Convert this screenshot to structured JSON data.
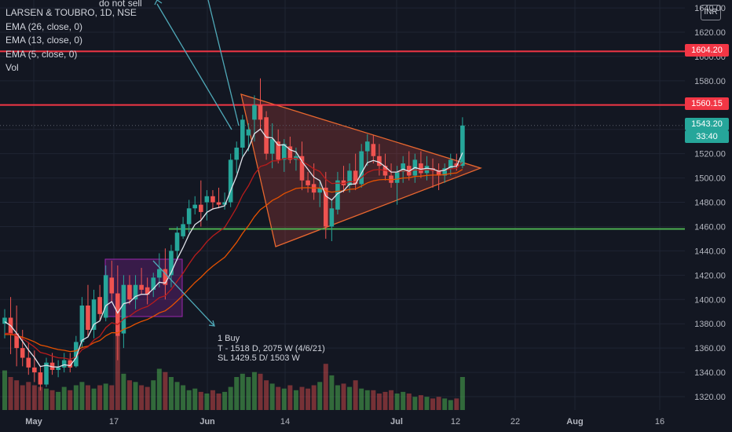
{
  "legend": {
    "symbol": "LARSEN & TOUBRO, 1D, NSE",
    "ema26": "EMA (26, close, 0)",
    "ema13": "EMA (13, close, 0)",
    "ema5": "EMA (5, close, 0)",
    "vol": "Vol"
  },
  "currency": "INR",
  "annotations": {
    "top_note": "do not sell",
    "buy_line1": "1 Buy",
    "buy_line2": "T - 1518 D, 2075 W (4/6/21)",
    "buy_line3": "SL 1429.5 D/ 1503 W"
  },
  "price_labels": {
    "line_top": "1604.20",
    "line_mid": "1560.15",
    "last_price": "1543.20",
    "countdown": "33:40"
  },
  "colors": {
    "background": "#131722",
    "up": "#26a69a",
    "down": "#ef5350",
    "red_line": "#f23645",
    "green_line": "#4caf50",
    "ema5": "#e0e3eb",
    "ema13": "#b71c1c",
    "ema26": "#e65100",
    "triangle_fill": "rgba(242,80,70,0.22)",
    "triangle_stroke": "#e8672f",
    "rect_fill": "rgba(156,39,176,0.28)",
    "rect_stroke": "#9c27b0",
    "arrow": "#4fa9b8"
  },
  "chart_data": {
    "type": "candlestick",
    "title": "LARSEN & TOUBRO, 1D, NSE",
    "ylim": [
      1310,
      1650
    ],
    "y_ticks": [
      1320,
      1340,
      1360,
      1380,
      1400,
      1420,
      1440,
      1460,
      1480,
      1500,
      1520,
      1540,
      1560,
      1580,
      1600,
      1620,
      1640
    ],
    "x_ticks": [
      "May",
      "17",
      "Jun",
      "14",
      "Jul",
      "12",
      "22",
      "Aug",
      "16"
    ],
    "horizontal_lines": [
      1604.2,
      1560.15,
      1458
    ],
    "candles": [
      [
        1380,
        1392,
        1368,
        1385,
        48
      ],
      [
        1385,
        1402,
        1355,
        1372,
        40
      ],
      [
        1372,
        1395,
        1345,
        1360,
        36
      ],
      [
        1360,
        1375,
        1345,
        1352,
        30
      ],
      [
        1352,
        1365,
        1338,
        1344,
        34
      ],
      [
        1344,
        1358,
        1332,
        1340,
        30
      ],
      [
        1340,
        1345,
        1325,
        1330,
        28
      ],
      [
        1330,
        1352,
        1328,
        1348,
        26
      ],
      [
        1348,
        1356,
        1338,
        1342,
        24
      ],
      [
        1342,
        1350,
        1336,
        1344,
        22
      ],
      [
        1344,
        1356,
        1340,
        1350,
        28
      ],
      [
        1350,
        1356,
        1340,
        1344,
        24
      ],
      [
        1345,
        1370,
        1344,
        1365,
        30
      ],
      [
        1365,
        1402,
        1360,
        1395,
        34
      ],
      [
        1395,
        1412,
        1370,
        1375,
        30
      ],
      [
        1375,
        1408,
        1368,
        1400,
        26
      ],
      [
        1402,
        1412,
        1382,
        1388,
        30
      ],
      [
        1385,
        1428,
        1382,
        1420,
        32
      ],
      [
        1418,
        1432,
        1398,
        1405,
        30
      ],
      [
        1405,
        1428,
        1350,
        1370,
        90
      ],
      [
        1372,
        1420,
        1360,
        1412,
        44
      ],
      [
        1412,
        1420,
        1396,
        1400,
        36
      ],
      [
        1400,
        1420,
        1392,
        1412,
        34
      ],
      [
        1412,
        1426,
        1404,
        1408,
        30
      ],
      [
        1410,
        1418,
        1396,
        1404,
        28
      ],
      [
        1408,
        1422,
        1402,
        1418,
        36
      ],
      [
        1418,
        1438,
        1410,
        1425,
        50
      ],
      [
        1425,
        1442,
        1400,
        1412,
        46
      ],
      [
        1420,
        1445,
        1410,
        1440,
        40
      ],
      [
        1440,
        1460,
        1432,
        1455,
        34
      ],
      [
        1452,
        1468,
        1450,
        1462,
        30
      ],
      [
        1462,
        1482,
        1455,
        1475,
        24
      ],
      [
        1475,
        1485,
        1470,
        1478,
        26
      ],
      [
        1478,
        1498,
        1460,
        1472,
        22
      ],
      [
        1480,
        1490,
        1465,
        1485,
        20
      ],
      [
        1485,
        1490,
        1474,
        1480,
        24
      ],
      [
        1480,
        1492,
        1475,
        1478,
        20
      ],
      [
        1478,
        1488,
        1474,
        1480,
        22
      ],
      [
        1480,
        1520,
        1476,
        1515,
        28
      ],
      [
        1515,
        1530,
        1504,
        1525,
        40
      ],
      [
        1525,
        1552,
        1518,
        1548,
        44
      ],
      [
        1535,
        1545,
        1522,
        1540,
        40
      ],
      [
        1548,
        1568,
        1530,
        1560,
        46
      ],
      [
        1560,
        1582,
        1540,
        1548,
        44
      ],
      [
        1550,
        1555,
        1515,
        1520,
        36
      ],
      [
        1520,
        1545,
        1508,
        1532,
        32
      ],
      [
        1530,
        1540,
        1512,
        1515,
        28
      ],
      [
        1515,
        1532,
        1505,
        1528,
        26
      ],
      [
        1526,
        1534,
        1512,
        1515,
        30
      ],
      [
        1515,
        1525,
        1506,
        1518,
        24
      ],
      [
        1518,
        1530,
        1490,
        1498,
        28
      ],
      [
        1498,
        1505,
        1488,
        1494,
        26
      ],
      [
        1495,
        1512,
        1482,
        1488,
        30
      ],
      [
        1488,
        1498,
        1476,
        1492,
        34
      ],
      [
        1492,
        1505,
        1450,
        1460,
        56
      ],
      [
        1460,
        1482,
        1448,
        1475,
        42
      ],
      [
        1474,
        1505,
        1470,
        1498,
        30
      ],
      [
        1498,
        1510,
        1488,
        1494,
        32
      ],
      [
        1494,
        1512,
        1488,
        1506,
        28
      ],
      [
        1506,
        1520,
        1490,
        1495,
        36
      ],
      [
        1495,
        1528,
        1492,
        1522,
        26
      ],
      [
        1522,
        1536,
        1510,
        1530,
        24
      ],
      [
        1528,
        1535,
        1512,
        1518,
        24
      ],
      [
        1518,
        1528,
        1502,
        1510,
        20
      ],
      [
        1510,
        1520,
        1498,
        1502,
        22
      ],
      [
        1502,
        1512,
        1492,
        1496,
        24
      ],
      [
        1496,
        1510,
        1478,
        1505,
        20
      ],
      [
        1505,
        1518,
        1496,
        1512,
        22
      ],
      [
        1510,
        1522,
        1498,
        1502,
        20
      ],
      [
        1502,
        1520,
        1496,
        1515,
        16
      ],
      [
        1512,
        1522,
        1500,
        1504,
        18
      ],
      [
        1504,
        1518,
        1498,
        1510,
        16
      ],
      [
        1508,
        1516,
        1492,
        1506,
        14
      ],
      [
        1506,
        1512,
        1490,
        1502,
        16
      ],
      [
        1502,
        1512,
        1496,
        1508,
        14
      ],
      [
        1508,
        1520,
        1502,
        1515,
        12
      ],
      [
        1512,
        1520,
        1506,
        1510,
        14
      ],
      [
        1510,
        1550,
        1508,
        1543.2,
        40
      ]
    ]
  }
}
